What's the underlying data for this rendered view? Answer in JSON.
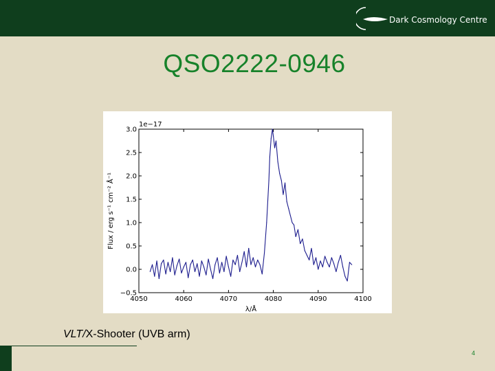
{
  "header": {
    "logo_text": "Dark Cosmology Centre",
    "bar_color": "#0f3e1d"
  },
  "slide": {
    "title": "QSO2222-0946",
    "title_color": "#17822a",
    "caption_italic": "VLT/",
    "caption_rest": "X-Shooter (UVB arm)",
    "page_number": "4"
  },
  "chart_data": {
    "type": "line",
    "xlabel": "λ/Å",
    "ylabel": "Flux / erg s⁻¹ cm⁻² Å⁻¹",
    "y_offset_label": "1e−17",
    "xlim": [
      4050,
      4100
    ],
    "ylim": [
      -0.5,
      3.0
    ],
    "x_ticks": [
      "4050",
      "4060",
      "4070",
      "4080",
      "4090",
      "4100"
    ],
    "y_ticks": [
      "−0.5",
      "0.0",
      "0.5",
      "1.0",
      "1.5",
      "2.0",
      "2.5",
      "3.0"
    ],
    "grid": false,
    "line_color": "#1a1a8c",
    "series": [
      {
        "x": [
          4052.5,
          4053,
          4053.5,
          4054,
          4054.5,
          4055,
          4055.5,
          4056,
          4056.5,
          4057,
          4057.5,
          4058,
          4058.5,
          4059,
          4059.5,
          4060,
          4060.5,
          4061,
          4061.5,
          4062,
          4062.5,
          4063,
          4063.5,
          4064,
          4064.5,
          4065,
          4065.5,
          4066,
          4066.5,
          4067,
          4067.5,
          4068,
          4068.5,
          4069,
          4069.5,
          4070,
          4070.5,
          4071,
          4071.5,
          4072,
          4072.5,
          4073,
          4073.5,
          4074,
          4074.5,
          4075,
          4075.5,
          4076,
          4076.5,
          4077,
          4077.5,
          4078,
          4078.5,
          4079,
          4079.2,
          4079.5,
          4079.8,
          4080,
          4080.3,
          4080.6,
          4081,
          4081.4,
          4081.8,
          4082.2,
          4082.6,
          4083,
          4083.4,
          4083.8,
          4084.2,
          4084.6,
          4085,
          4085.5,
          4086,
          4086.5,
          4087,
          4087.5,
          4088,
          4088.5,
          4089,
          4089.5,
          4090,
          4090.5,
          4091,
          4091.5,
          4092,
          4092.5,
          4093,
          4093.5,
          4094,
          4094.5,
          4095,
          4095.5,
          4096,
          4096.5,
          4097,
          4097.5
        ],
        "y": [
          -0.05,
          0.1,
          -0.15,
          0.18,
          -0.2,
          0.12,
          0.2,
          -0.1,
          0.15,
          -0.05,
          0.25,
          -0.12,
          0.08,
          0.22,
          -0.08,
          0.05,
          0.15,
          -0.18,
          0.1,
          0.2,
          -0.05,
          0.12,
          -0.15,
          0.18,
          0.05,
          -0.12,
          0.22,
          0.0,
          -0.2,
          0.1,
          0.25,
          -0.08,
          0.15,
          -0.05,
          0.28,
          0.05,
          -0.15,
          0.2,
          0.1,
          0.3,
          -0.05,
          0.15,
          0.38,
          0.05,
          0.45,
          0.1,
          0.25,
          0.05,
          0.2,
          0.1,
          -0.1,
          0.35,
          1.0,
          1.9,
          2.4,
          2.8,
          3.0,
          2.85,
          2.6,
          2.75,
          2.3,
          2.05,
          1.9,
          1.6,
          1.85,
          1.45,
          1.3,
          1.15,
          1.0,
          0.95,
          0.7,
          0.85,
          0.55,
          0.65,
          0.4,
          0.3,
          0.2,
          0.45,
          0.1,
          0.25,
          0.0,
          0.18,
          0.05,
          0.28,
          0.15,
          0.05,
          0.25,
          0.12,
          -0.05,
          0.15,
          0.3,
          0.05,
          -0.15,
          -0.25,
          0.15,
          0.1
        ]
      }
    ]
  }
}
